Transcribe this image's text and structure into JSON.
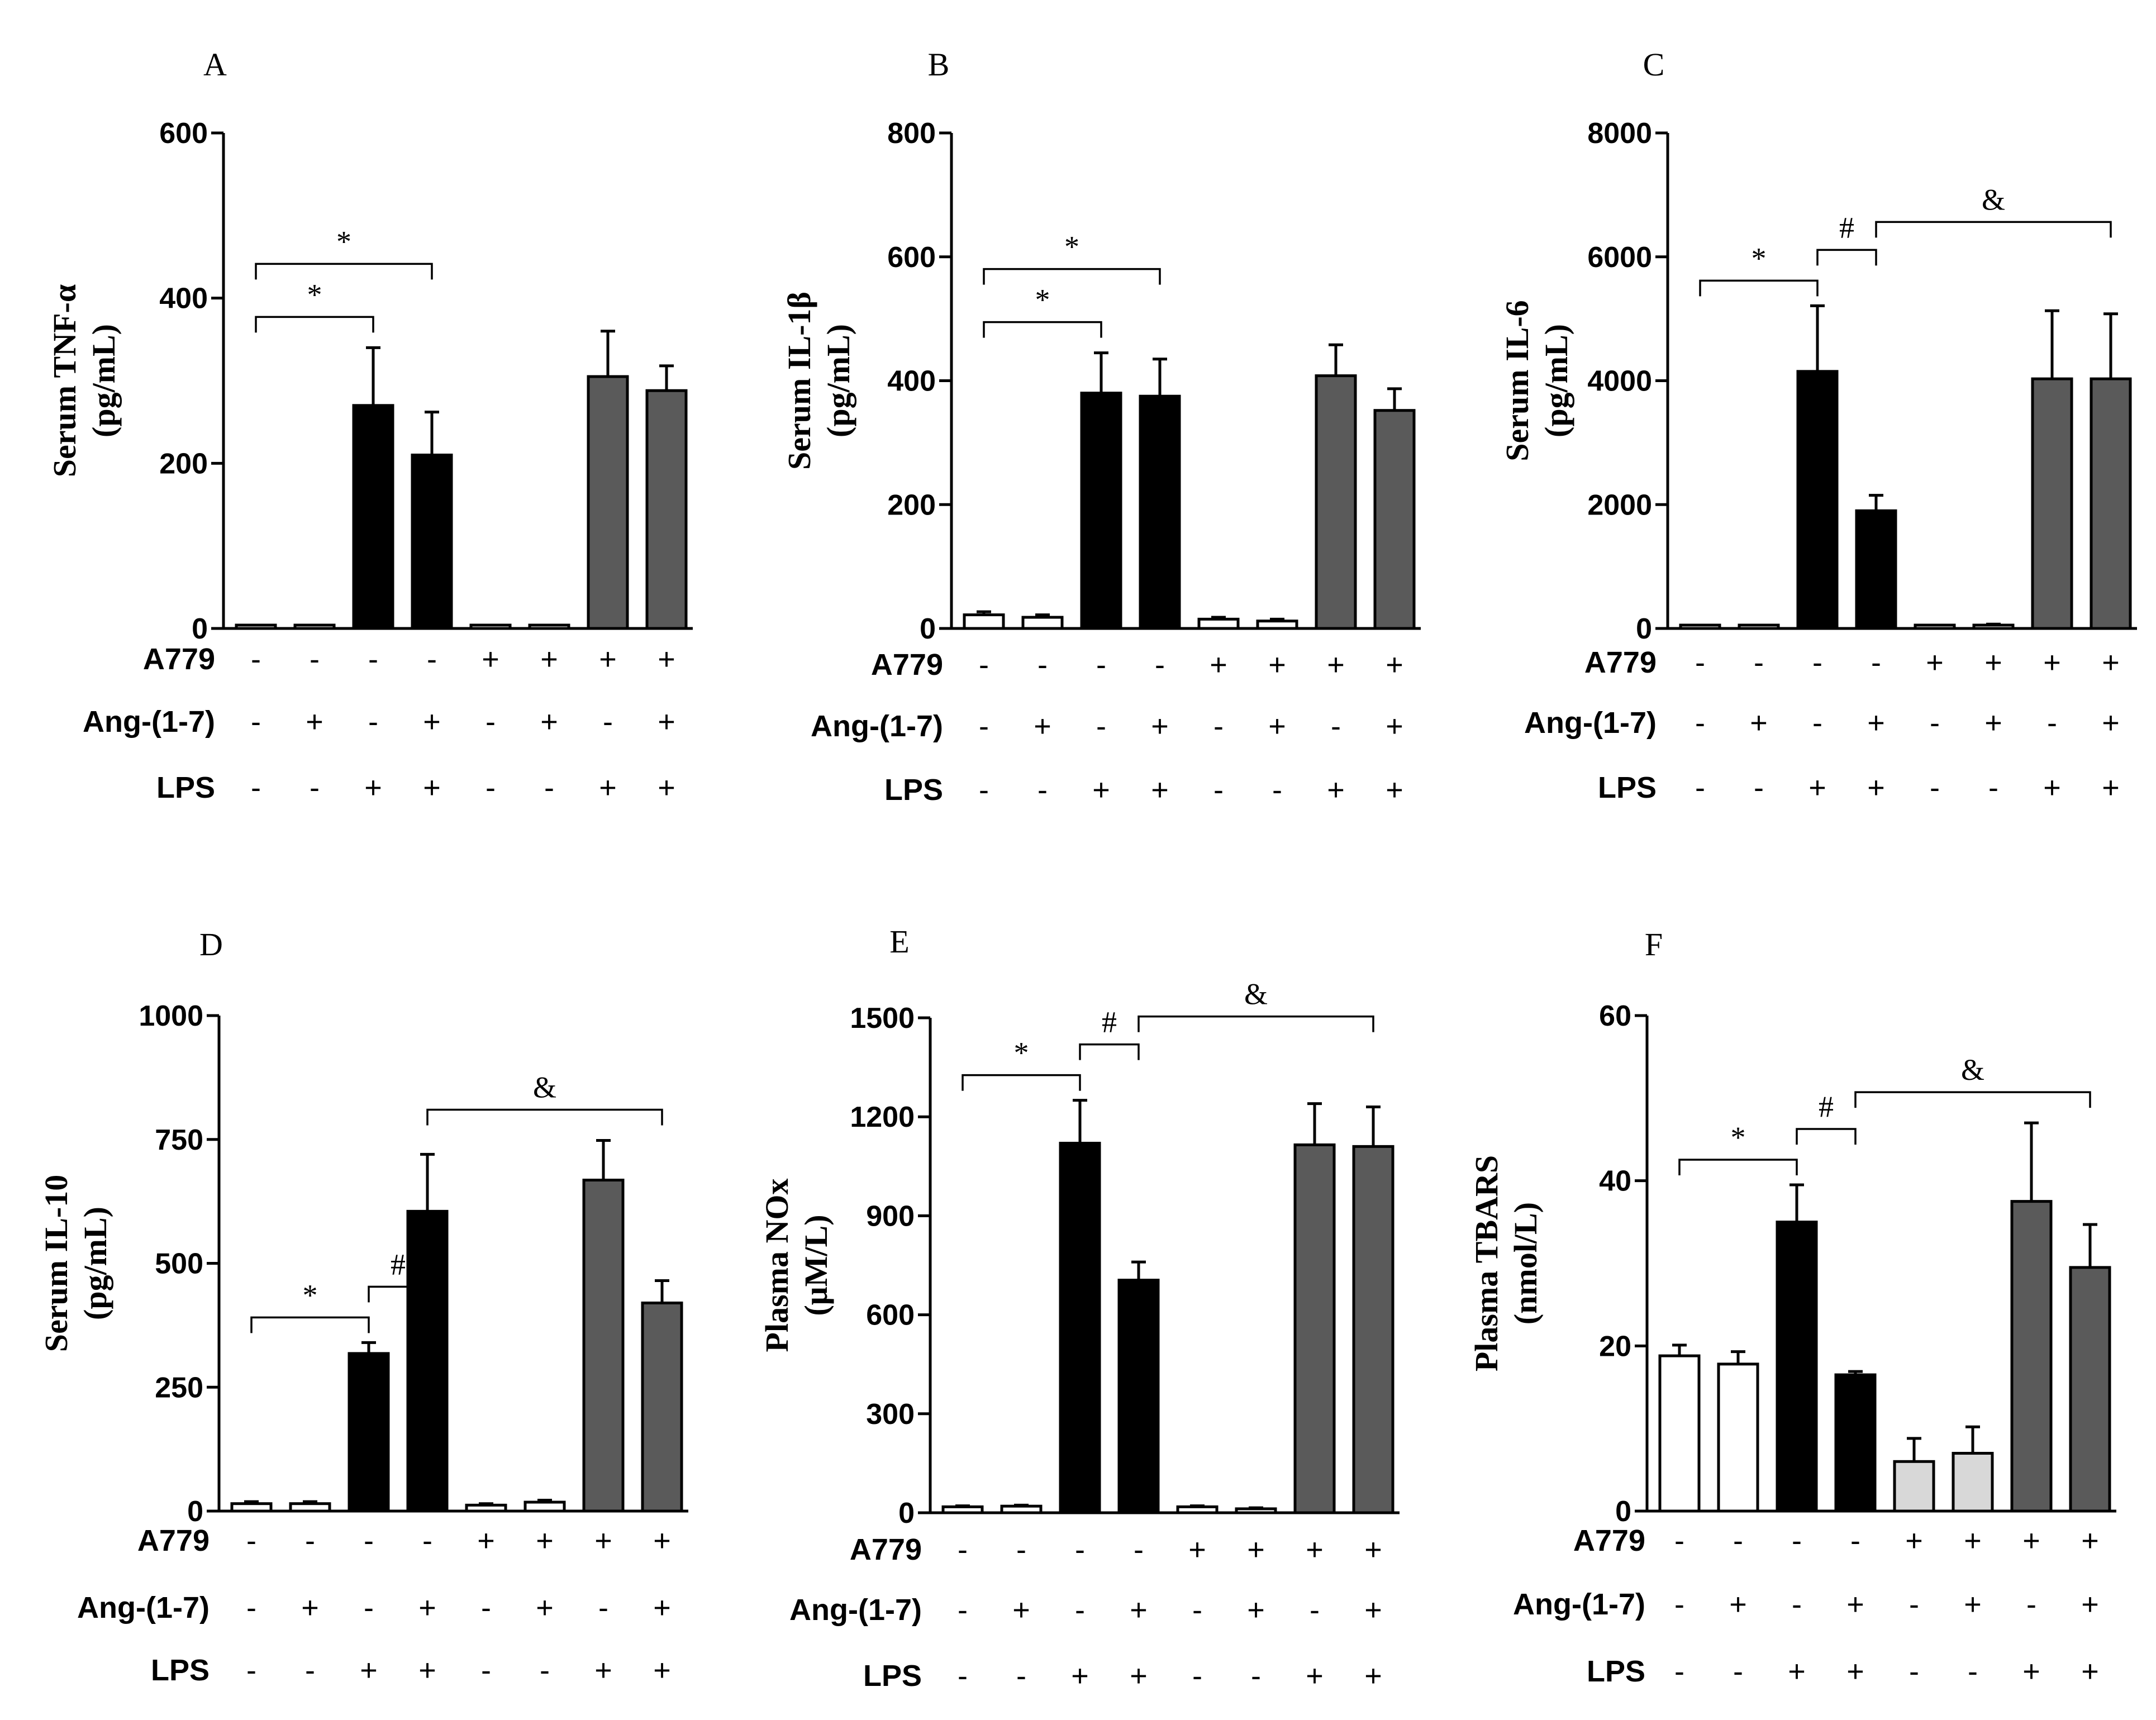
{
  "figure": {
    "row_labels": [
      "A779",
      "Ang-(1-7)",
      "LPS"
    ],
    "conditions": [
      {
        "A779": "-",
        "Ang-(1-7)": "-",
        "LPS": "-"
      },
      {
        "A779": "-",
        "Ang-(1-7)": "+",
        "LPS": "-"
      },
      {
        "A779": "-",
        "Ang-(1-7)": "-",
        "LPS": "+"
      },
      {
        "A779": "-",
        "Ang-(1-7)": "+",
        "LPS": "+"
      },
      {
        "A779": "+",
        "Ang-(1-7)": "-",
        "LPS": "-"
      },
      {
        "A779": "+",
        "Ang-(1-7)": "+",
        "LPS": "-"
      },
      {
        "A779": "+",
        "Ang-(1-7)": "-",
        "LPS": "+"
      },
      {
        "A779": "+",
        "Ang-(1-7)": "+",
        "LPS": "+"
      }
    ],
    "colors": {
      "control": "#ffffff",
      "lps": "#000000",
      "a779": "#ffffff",
      "a779_lps": "#5a5a5a",
      "a779_f": "#d8d8d8",
      "axis": "#000000"
    }
  },
  "chart_data": [
    {
      "type": "bar",
      "panel": "A",
      "title": "",
      "ylabel_line1": "Serum TNF-α",
      "ylabel_line2": "(pg/mL)",
      "ylim": [
        0,
        600
      ],
      "yticks": [
        "0",
        "200",
        "400",
        "600"
      ],
      "values": [
        3,
        3,
        270,
        210,
        0,
        3,
        305,
        288
      ],
      "errors": [
        0,
        0,
        70,
        52,
        0,
        0,
        55,
        30
      ],
      "fills": [
        "control",
        "control",
        "lps",
        "lps",
        "a779",
        "a779",
        "a779_lps",
        "a779_lps"
      ],
      "significance": [
        {
          "from": 0,
          "to": 2,
          "label": "*"
        },
        {
          "from": 0,
          "to": 3,
          "label": "*"
        }
      ]
    },
    {
      "type": "bar",
      "panel": "B",
      "title": "",
      "ylabel_line1": "Serum IL-1β",
      "ylabel_line2": "(pg/mL)",
      "ylim": [
        0,
        800
      ],
      "yticks": [
        "0",
        "200",
        "400",
        "600",
        "800"
      ],
      "values": [
        22,
        18,
        380,
        375,
        15,
        12,
        408,
        352
      ],
      "errors": [
        5,
        4,
        65,
        60,
        3,
        3,
        50,
        35
      ],
      "fills": [
        "control",
        "control",
        "lps",
        "lps",
        "a779",
        "a779",
        "a779_lps",
        "a779_lps"
      ],
      "significance": [
        {
          "from": 0,
          "to": 2,
          "label": "*"
        },
        {
          "from": 0,
          "to": 3,
          "label": "*"
        }
      ]
    },
    {
      "type": "bar",
      "panel": "C",
      "title": "",
      "ylabel_line1": "Serum IL-6",
      "ylabel_line2": "(pg/mL)",
      "ylim": [
        0,
        8000
      ],
      "yticks": [
        "0",
        "2000",
        "4000",
        "6000",
        "8000"
      ],
      "values": [
        30,
        30,
        4150,
        1900,
        30,
        50,
        4030,
        4030
      ],
      "errors": [
        0,
        0,
        1060,
        250,
        0,
        20,
        1100,
        1050
      ],
      "fills": [
        "control",
        "control",
        "lps",
        "lps",
        "a779",
        "a779",
        "a779_lps",
        "a779_lps"
      ],
      "significance": [
        {
          "from": 0,
          "to": 2,
          "label": "*"
        },
        {
          "from": 2,
          "to": 3,
          "label": "#"
        },
        {
          "from": 3,
          "to": 7,
          "label": "&"
        }
      ]
    },
    {
      "type": "bar",
      "panel": "D",
      "title": "",
      "ylabel_line1": "Serum IL-10",
      "ylabel_line2": "(pg/mL)",
      "ylim": [
        0,
        1000
      ],
      "yticks": [
        "0",
        "250",
        "500",
        "750",
        "1000"
      ],
      "values": [
        15,
        15,
        318,
        605,
        12,
        18,
        668,
        420
      ],
      "errors": [
        4,
        4,
        22,
        115,
        3,
        4,
        80,
        45
      ],
      "fills": [
        "control",
        "control",
        "lps",
        "lps",
        "a779",
        "a779",
        "a779_lps",
        "a779_lps"
      ],
      "significance": [
        {
          "from": 0,
          "to": 2,
          "label": "*"
        },
        {
          "from": 2,
          "to": 3,
          "label": "#"
        },
        {
          "from": 3,
          "to": 7,
          "label": "&"
        }
      ]
    },
    {
      "type": "bar",
      "panel": "E",
      "title": "",
      "ylabel_line1": "Plasma NOx",
      "ylabel_line2": "(μM/L)",
      "ylim": [
        0,
        1500
      ],
      "yticks": [
        "0",
        "300",
        "600",
        "900",
        "1200",
        "1500"
      ],
      "values": [
        18,
        20,
        1120,
        705,
        18,
        12,
        1115,
        1110
      ],
      "errors": [
        3,
        3,
        130,
        55,
        3,
        3,
        125,
        120
      ],
      "fills": [
        "control",
        "control",
        "lps",
        "lps",
        "a779",
        "a779",
        "a779_lps",
        "a779_lps"
      ],
      "significance": [
        {
          "from": 0,
          "to": 2,
          "label": "*"
        },
        {
          "from": 2,
          "to": 3,
          "label": "#"
        },
        {
          "from": 3,
          "to": 7,
          "label": "&"
        }
      ]
    },
    {
      "type": "bar",
      "panel": "F",
      "title": "",
      "ylabel_line1": "Plasma TBARS",
      "ylabel_line2": "(nmol/L)",
      "ylim": [
        0,
        60
      ],
      "yticks": [
        "0",
        "20",
        "40",
        "60"
      ],
      "values": [
        18.8,
        17.8,
        35,
        16.5,
        6,
        7,
        37.5,
        29.5
      ],
      "errors": [
        1.3,
        1.5,
        4.5,
        0.4,
        2.8,
        3.2,
        9.5,
        5.2
      ],
      "fills": [
        "control",
        "control",
        "lps",
        "lps",
        "a779_f",
        "a779_f",
        "a779_lps",
        "a779_lps"
      ],
      "significance": [
        {
          "from": 0,
          "to": 2,
          "label": "*"
        },
        {
          "from": 2,
          "to": 3,
          "label": "#"
        },
        {
          "from": 3,
          "to": 7,
          "label": "&"
        }
      ]
    }
  ]
}
